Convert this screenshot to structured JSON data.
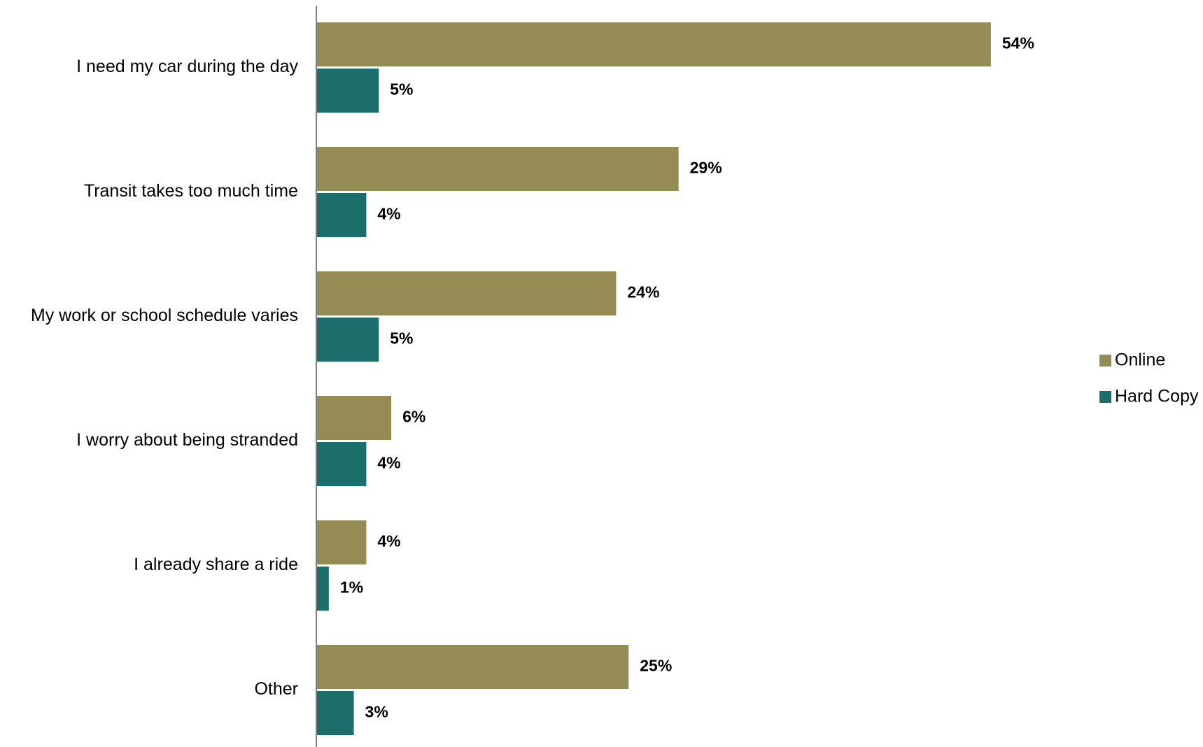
{
  "chart_data": {
    "type": "bar",
    "orientation": "horizontal",
    "categories": [
      "I need my car during the day",
      "Transit takes too much time",
      "My work or school schedule varies",
      "I worry about being stranded",
      "I already share a ride",
      "Other"
    ],
    "series": [
      {
        "name": "Online",
        "color": "#958b54",
        "values": [
          54,
          29,
          24,
          6,
          4,
          25
        ],
        "labels": [
          "54%",
          "29%",
          "24%",
          "6%",
          "4%",
          "25%"
        ]
      },
      {
        "name": "Hard Copy",
        "color": "#1b6e6c",
        "values": [
          5,
          4,
          5,
          4,
          1,
          3
        ],
        "labels": [
          "5%",
          "4%",
          "5%",
          "4%",
          "1%",
          "3%"
        ]
      }
    ],
    "title": "",
    "xlabel": "",
    "ylabel": "",
    "xlim": [
      0,
      60
    ],
    "grid": false,
    "legend_position": "right"
  }
}
